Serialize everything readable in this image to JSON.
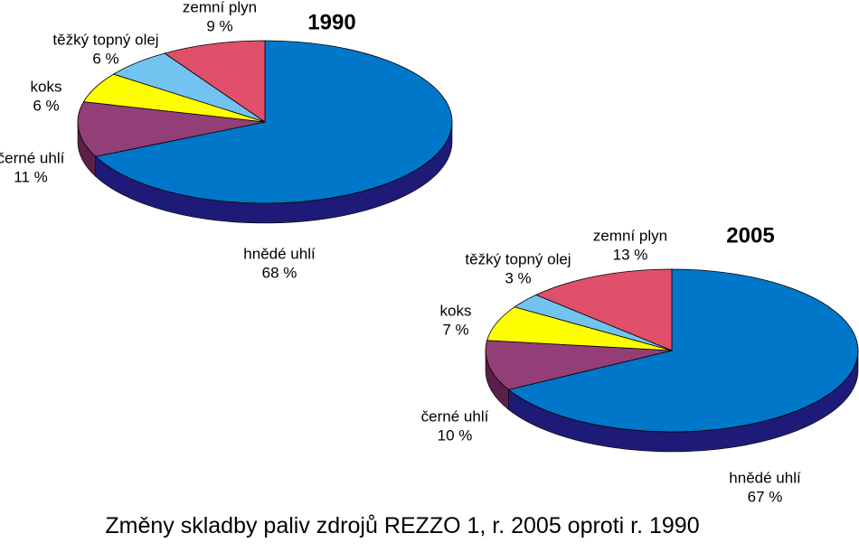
{
  "caption": "Změny skladby paliv zdrojů REZZO 1, r. 2005 oproti r. 1990",
  "chart_data": [
    {
      "type": "pie",
      "title": "1990",
      "slices": [
        {
          "name": "hnědé uhlí",
          "value": 68,
          "label": "68 %",
          "color": "#0077c8",
          "side": "#1e1a78"
        },
        {
          "name": "černé uhlí",
          "value": 11,
          "label": "11 %",
          "color": "#933e77",
          "side": "#5a2048"
        },
        {
          "name": "koks",
          "value": 6,
          "label": "6 %",
          "color": "#ffff00",
          "side": "#9a9a00"
        },
        {
          "name": "těžký topný olej",
          "value": 6,
          "label": "6 %",
          "color": "#72c3f0",
          "side": "#3c86b0"
        },
        {
          "name": "zemní plyn",
          "value": 9,
          "label": "9 %",
          "color": "#e0506a",
          "side": "#922c3f"
        }
      ]
    },
    {
      "type": "pie",
      "title": "2005",
      "slices": [
        {
          "name": "hnědé uhlí",
          "value": 67,
          "label": "67 %",
          "color": "#0077c8",
          "side": "#1e1a78"
        },
        {
          "name": "černé uhlí",
          "value": 10,
          "label": "10 %",
          "color": "#933e77",
          "side": "#5a2048"
        },
        {
          "name": "koks",
          "value": 7,
          "label": "7 %",
          "color": "#ffff00",
          "side": "#9a9a00"
        },
        {
          "name": "těžký topný olej",
          "value": 3,
          "label": "3 %",
          "color": "#72c3f0",
          "side": "#3c86b0"
        },
        {
          "name": "zemní plyn",
          "value": 13,
          "label": "13 %",
          "color": "#e0506a",
          "side": "#922c3f"
        }
      ]
    }
  ]
}
